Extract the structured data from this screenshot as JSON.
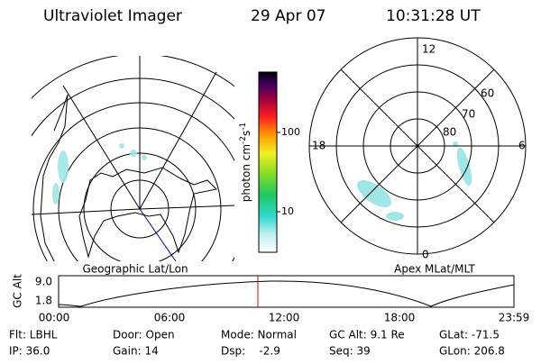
{
  "header": {
    "title": "Ultraviolet Imager",
    "date": "29 Apr 07",
    "time": "10:31:28 UT"
  },
  "geo_map": {
    "caption": "Geographic Lat/Lon"
  },
  "color_bar": {
    "ticks": [
      "100",
      "10"
    ],
    "unit": [
      "photon cm",
      "-2",
      "s",
      "-1"
    ]
  },
  "mlt_map": {
    "caption": "Apex MLat/MLT",
    "mlt_labels": [
      "12",
      "18",
      "6",
      "0"
    ],
    "lat_labels": [
      "60",
      "70",
      "80"
    ]
  },
  "altitude_plot": {
    "ylabel": "GC Alt",
    "yticks": [
      "9.0",
      "1.8"
    ],
    "xticks": [
      "00:00",
      "06:00",
      "12:00",
      "18:00",
      "23:59"
    ]
  },
  "status": {
    "rows": [
      [
        "Flt: LBHL",
        "Door: Open",
        "Mode: Normal",
        "GC Alt: 9.1 Re",
        "GLat: -71.5"
      ],
      [
        "IP: 36.0",
        "Gain: 14",
        "Dsp:    -2.9",
        "Seq: 39",
        "GLon: 206.8"
      ]
    ]
  }
}
